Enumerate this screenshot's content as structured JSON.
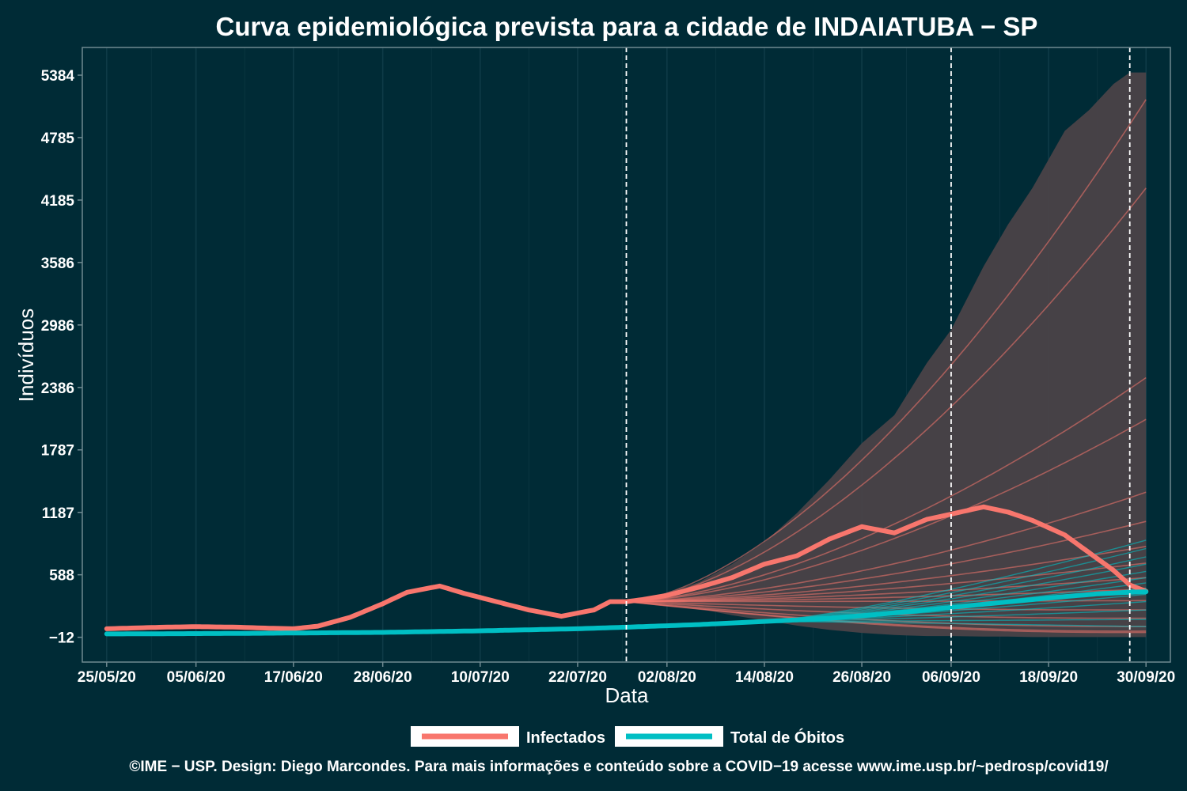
{
  "chart_data": {
    "type": "line",
    "title": "Curva epidemiológica prevista para a cidade de INDAIATUBA − SP",
    "xlabel": "Data",
    "ylabel": "Indivíduos",
    "x_range": [
      "2020-05-25",
      "2020-09-30"
    ],
    "ylim": [
      -250,
      5650
    ],
    "y_ticks": [
      -12,
      588,
      1187,
      1787,
      2386,
      2986,
      3586,
      4185,
      4785,
      5384
    ],
    "y_tick_labels": [
      "−12",
      "588",
      "1187",
      "1787",
      "2386",
      "2986",
      "3586",
      "4185",
      "4785",
      "5384"
    ],
    "x_ticks": [
      "2020-05-25",
      "2020-06-05",
      "2020-06-17",
      "2020-06-28",
      "2020-07-10",
      "2020-07-22",
      "2020-08-02",
      "2020-08-14",
      "2020-08-26",
      "2020-09-06",
      "2020-09-18",
      "2020-09-30"
    ],
    "x_tick_labels": [
      "25/05/20",
      "05/06/20",
      "17/06/20",
      "28/06/20",
      "10/07/20",
      "22/07/20",
      "02/08/20",
      "14/08/20",
      "26/08/20",
      "06/09/20",
      "18/09/20",
      "30/09/20"
    ],
    "vlines": [
      "2020-07-28",
      "2020-09-06",
      "2020-09-28"
    ],
    "grid": "vertical",
    "legend": {
      "position": "bottom",
      "entries": [
        {
          "label": "Infectados",
          "color": "#f8766d"
        },
        {
          "label": "Total de Óbitos",
          "color": "#00bfc4"
        }
      ]
    },
    "colors": {
      "background": "#002b36",
      "panel_border": "#6f8a91",
      "band": "#4a4248",
      "vline": "#ffffff",
      "infected": "#f8766d",
      "deaths": "#00bfc4"
    },
    "series": [
      {
        "name": "Infectados",
        "x": [
          "2020-05-25",
          "2020-06-01",
          "2020-06-05",
          "2020-06-10",
          "2020-06-14",
          "2020-06-17",
          "2020-06-20",
          "2020-06-24",
          "2020-06-28",
          "2020-07-01",
          "2020-07-05",
          "2020-07-08",
          "2020-07-12",
          "2020-07-16",
          "2020-07-20",
          "2020-07-24",
          "2020-07-26",
          "2020-07-28",
          "2020-07-30",
          "2020-08-02",
          "2020-08-06",
          "2020-08-10",
          "2020-08-14",
          "2020-08-18",
          "2020-08-22",
          "2020-08-26",
          "2020-08-30",
          "2020-09-03",
          "2020-09-06",
          "2020-09-10",
          "2020-09-13",
          "2020-09-16",
          "2020-09-20",
          "2020-09-23",
          "2020-09-26",
          "2020-09-28",
          "2020-09-30"
        ],
        "values": [
          70,
          85,
          90,
          85,
          75,
          70,
          95,
          180,
          310,
          420,
          480,
          410,
          330,
          250,
          190,
          250,
          330,
          330,
          350,
          390,
          470,
          560,
          690,
          770,
          930,
          1050,
          990,
          1120,
          1170,
          1240,
          1190,
          1110,
          970,
          800,
          630,
          490,
          430
        ]
      },
      {
        "name": "Total de Óbitos",
        "x": [
          "2020-05-25",
          "2020-06-10",
          "2020-06-28",
          "2020-07-10",
          "2020-07-22",
          "2020-07-28",
          "2020-08-06",
          "2020-08-14",
          "2020-08-22",
          "2020-08-26",
          "2020-09-01",
          "2020-09-06",
          "2020-09-12",
          "2020-09-18",
          "2020-09-24",
          "2020-09-28",
          "2020-09-30"
        ],
        "values": [
          20,
          25,
          35,
          50,
          70,
          85,
          110,
          140,
          170,
          195,
          235,
          275,
          320,
          365,
          405,
          420,
          425
        ]
      }
    ],
    "projection_band": {
      "x": [
        "2020-07-28",
        "2020-08-02",
        "2020-08-06",
        "2020-08-10",
        "2020-08-14",
        "2020-08-18",
        "2020-08-22",
        "2020-08-26",
        "2020-08-30",
        "2020-09-03",
        "2020-09-06",
        "2020-09-10",
        "2020-09-13",
        "2020-09-16",
        "2020-09-20",
        "2020-09-23",
        "2020-09-26",
        "2020-09-28",
        "2020-09-30"
      ],
      "upper": [
        340,
        410,
        520,
        690,
        900,
        1180,
        1500,
        1850,
        2120,
        2620,
        2940,
        3550,
        3950,
        4300,
        4850,
        5050,
        5300,
        5410,
        5410
      ],
      "lower": [
        320,
        300,
        260,
        200,
        150,
        100,
        60,
        30,
        10,
        0,
        0,
        -5,
        -5,
        -10,
        -10,
        -10,
        -10,
        -10,
        -10
      ]
    },
    "infected_scenario_endpoints": [
      5150,
      4300,
      2480,
      2080,
      1380,
      1100,
      860,
      700,
      560,
      450,
      340,
      240,
      150,
      60,
      10,
      -5
    ],
    "deaths_scenario_endpoints": [
      920,
      840,
      760,
      690,
      620,
      560,
      510,
      460,
      400,
      330,
      250,
      160,
      90
    ]
  },
  "footer": {
    "caption": "©IME − USP. Design: Diego Marcondes. Para mais informações e conteúdo sobre a COVID−19 acesse www.ime.usp.br/~pedrosp/covid19/"
  }
}
